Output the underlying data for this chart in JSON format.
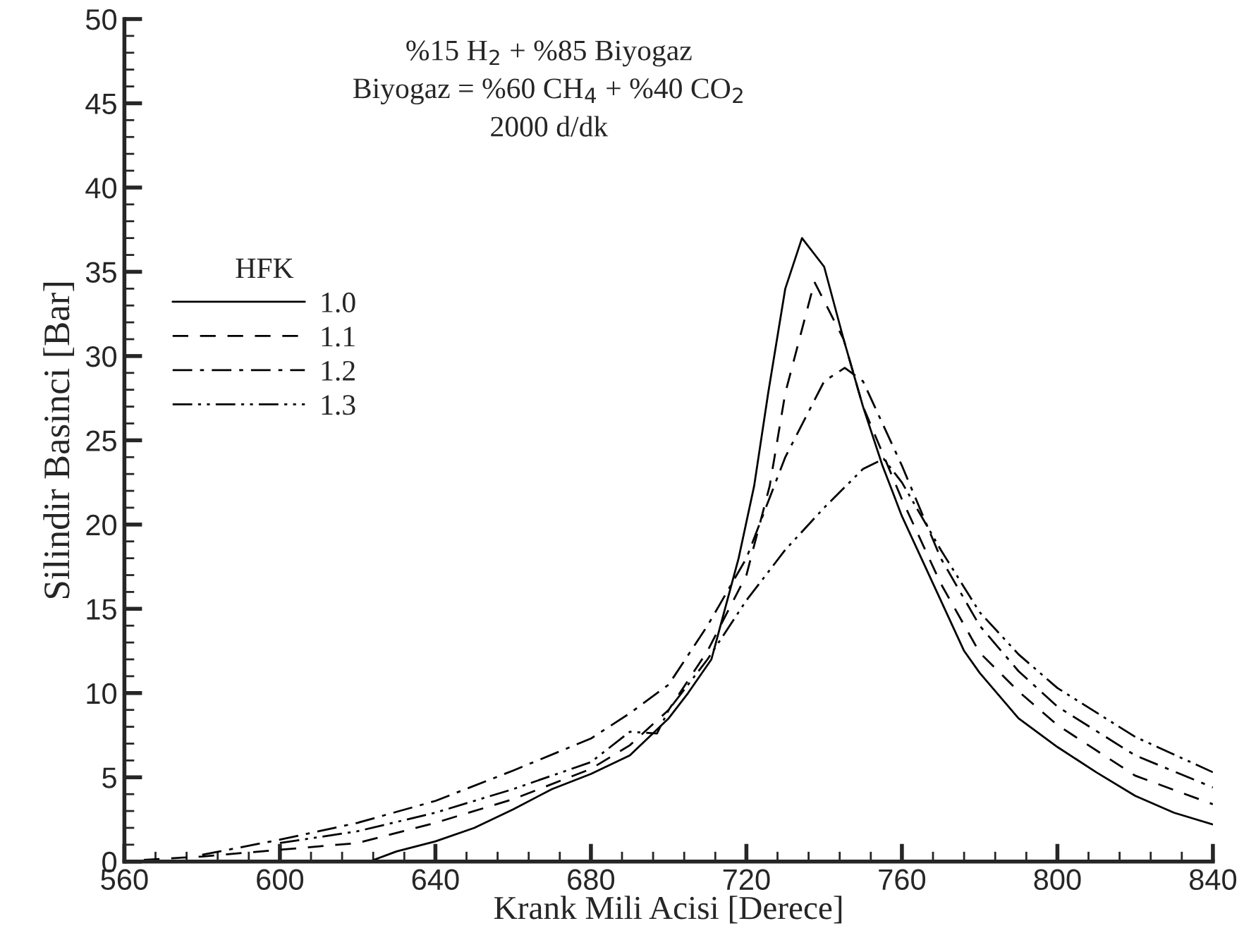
{
  "chart_data": {
    "type": "line",
    "xlabel": "Krank Mili Acisi [Derece]",
    "ylabel": "Silindir Basinci [Bar]",
    "legend_title": "HFK",
    "legend": "left",
    "grid": false,
    "marker": "none",
    "xlim": [
      560,
      840
    ],
    "xticks": [
      560,
      600,
      640,
      680,
      720,
      760,
      800,
      840
    ],
    "ylim": [
      0,
      50
    ],
    "yticks": [
      0,
      5,
      10,
      15,
      20,
      25,
      30,
      35,
      40,
      45,
      50
    ],
    "annotations": [
      "%15 H$_{2}$ + %85 Biyogaz",
      "Biyogaz = %60 CH$_{4}$ + %40 CO$_{2}$",
      "2000 d/dk"
    ],
    "series": [
      {
        "name": "1.0",
        "color": "#000000",
        "line_style": "solid",
        "x": [
          623,
          630,
          640,
          650,
          660,
          670,
          680,
          690,
          700,
          705,
          711,
          718,
          722,
          725.6,
          730,
          734.3,
          740,
          745,
          750,
          755,
          760,
          765,
          770,
          776,
          780,
          790,
          800,
          810,
          820,
          830,
          840
        ],
        "values": [
          0,
          0.6,
          1.2,
          2.0,
          3.1,
          4.3,
          5.2,
          6.3,
          8.5,
          10,
          12,
          18,
          22.3,
          27.8,
          34,
          37.0,
          35.3,
          31,
          27,
          23.5,
          20.5,
          18,
          15.5,
          12.5,
          11.2,
          8.5,
          6.8,
          5.3,
          3.9,
          2.9,
          2.2
        ]
      },
      {
        "name": "1.1",
        "color": "#000000",
        "line_style": "dashed",
        "x": [
          565,
          580,
          600,
          620,
          640,
          660,
          680,
          690,
          700,
          710,
          720,
          726,
          730,
          737.5,
          745,
          750,
          760,
          770,
          780,
          790,
          800,
          820,
          840
        ],
        "values": [
          0.1,
          0.3,
          0.7,
          1.1,
          2.3,
          3.7,
          5.5,
          6.9,
          9,
          12.5,
          17,
          22.3,
          27.8,
          34.4,
          31,
          27,
          21.5,
          16.5,
          12.4,
          10.1,
          8.1,
          5.1,
          3.4
        ]
      },
      {
        "name": "1.2",
        "color": "#000000",
        "line_style": "dashdot",
        "x": [
          580,
          600,
          620,
          640,
          660,
          680,
          690,
          700,
          710,
          720,
          730,
          740,
          745.3,
          750,
          760,
          770,
          780,
          790,
          800,
          820,
          840
        ],
        "values": [
          0.4,
          1.3,
          2.3,
          3.6,
          5.4,
          7.3,
          8.8,
          10.5,
          14,
          18,
          24,
          28.5,
          29.3,
          28.5,
          23.5,
          18,
          14,
          11.3,
          9.2,
          6.3,
          4.4
        ]
      },
      {
        "name": "1.3",
        "color": "#000000",
        "line_style": "dashdotdot",
        "x": [
          600,
          620,
          640,
          660,
          680,
          690,
          697,
          700,
          710,
          720,
          730,
          740,
          750,
          755.3,
          760,
          770,
          780,
          790,
          800,
          820,
          840
        ],
        "values": [
          1.1,
          1.8,
          2.9,
          4.3,
          5.9,
          7.7,
          7.6,
          9,
          12,
          15.5,
          18.5,
          21,
          23.3,
          23.9,
          22.5,
          18.5,
          14.8,
          12.3,
          10.3,
          7.4,
          5.3
        ]
      }
    ]
  }
}
